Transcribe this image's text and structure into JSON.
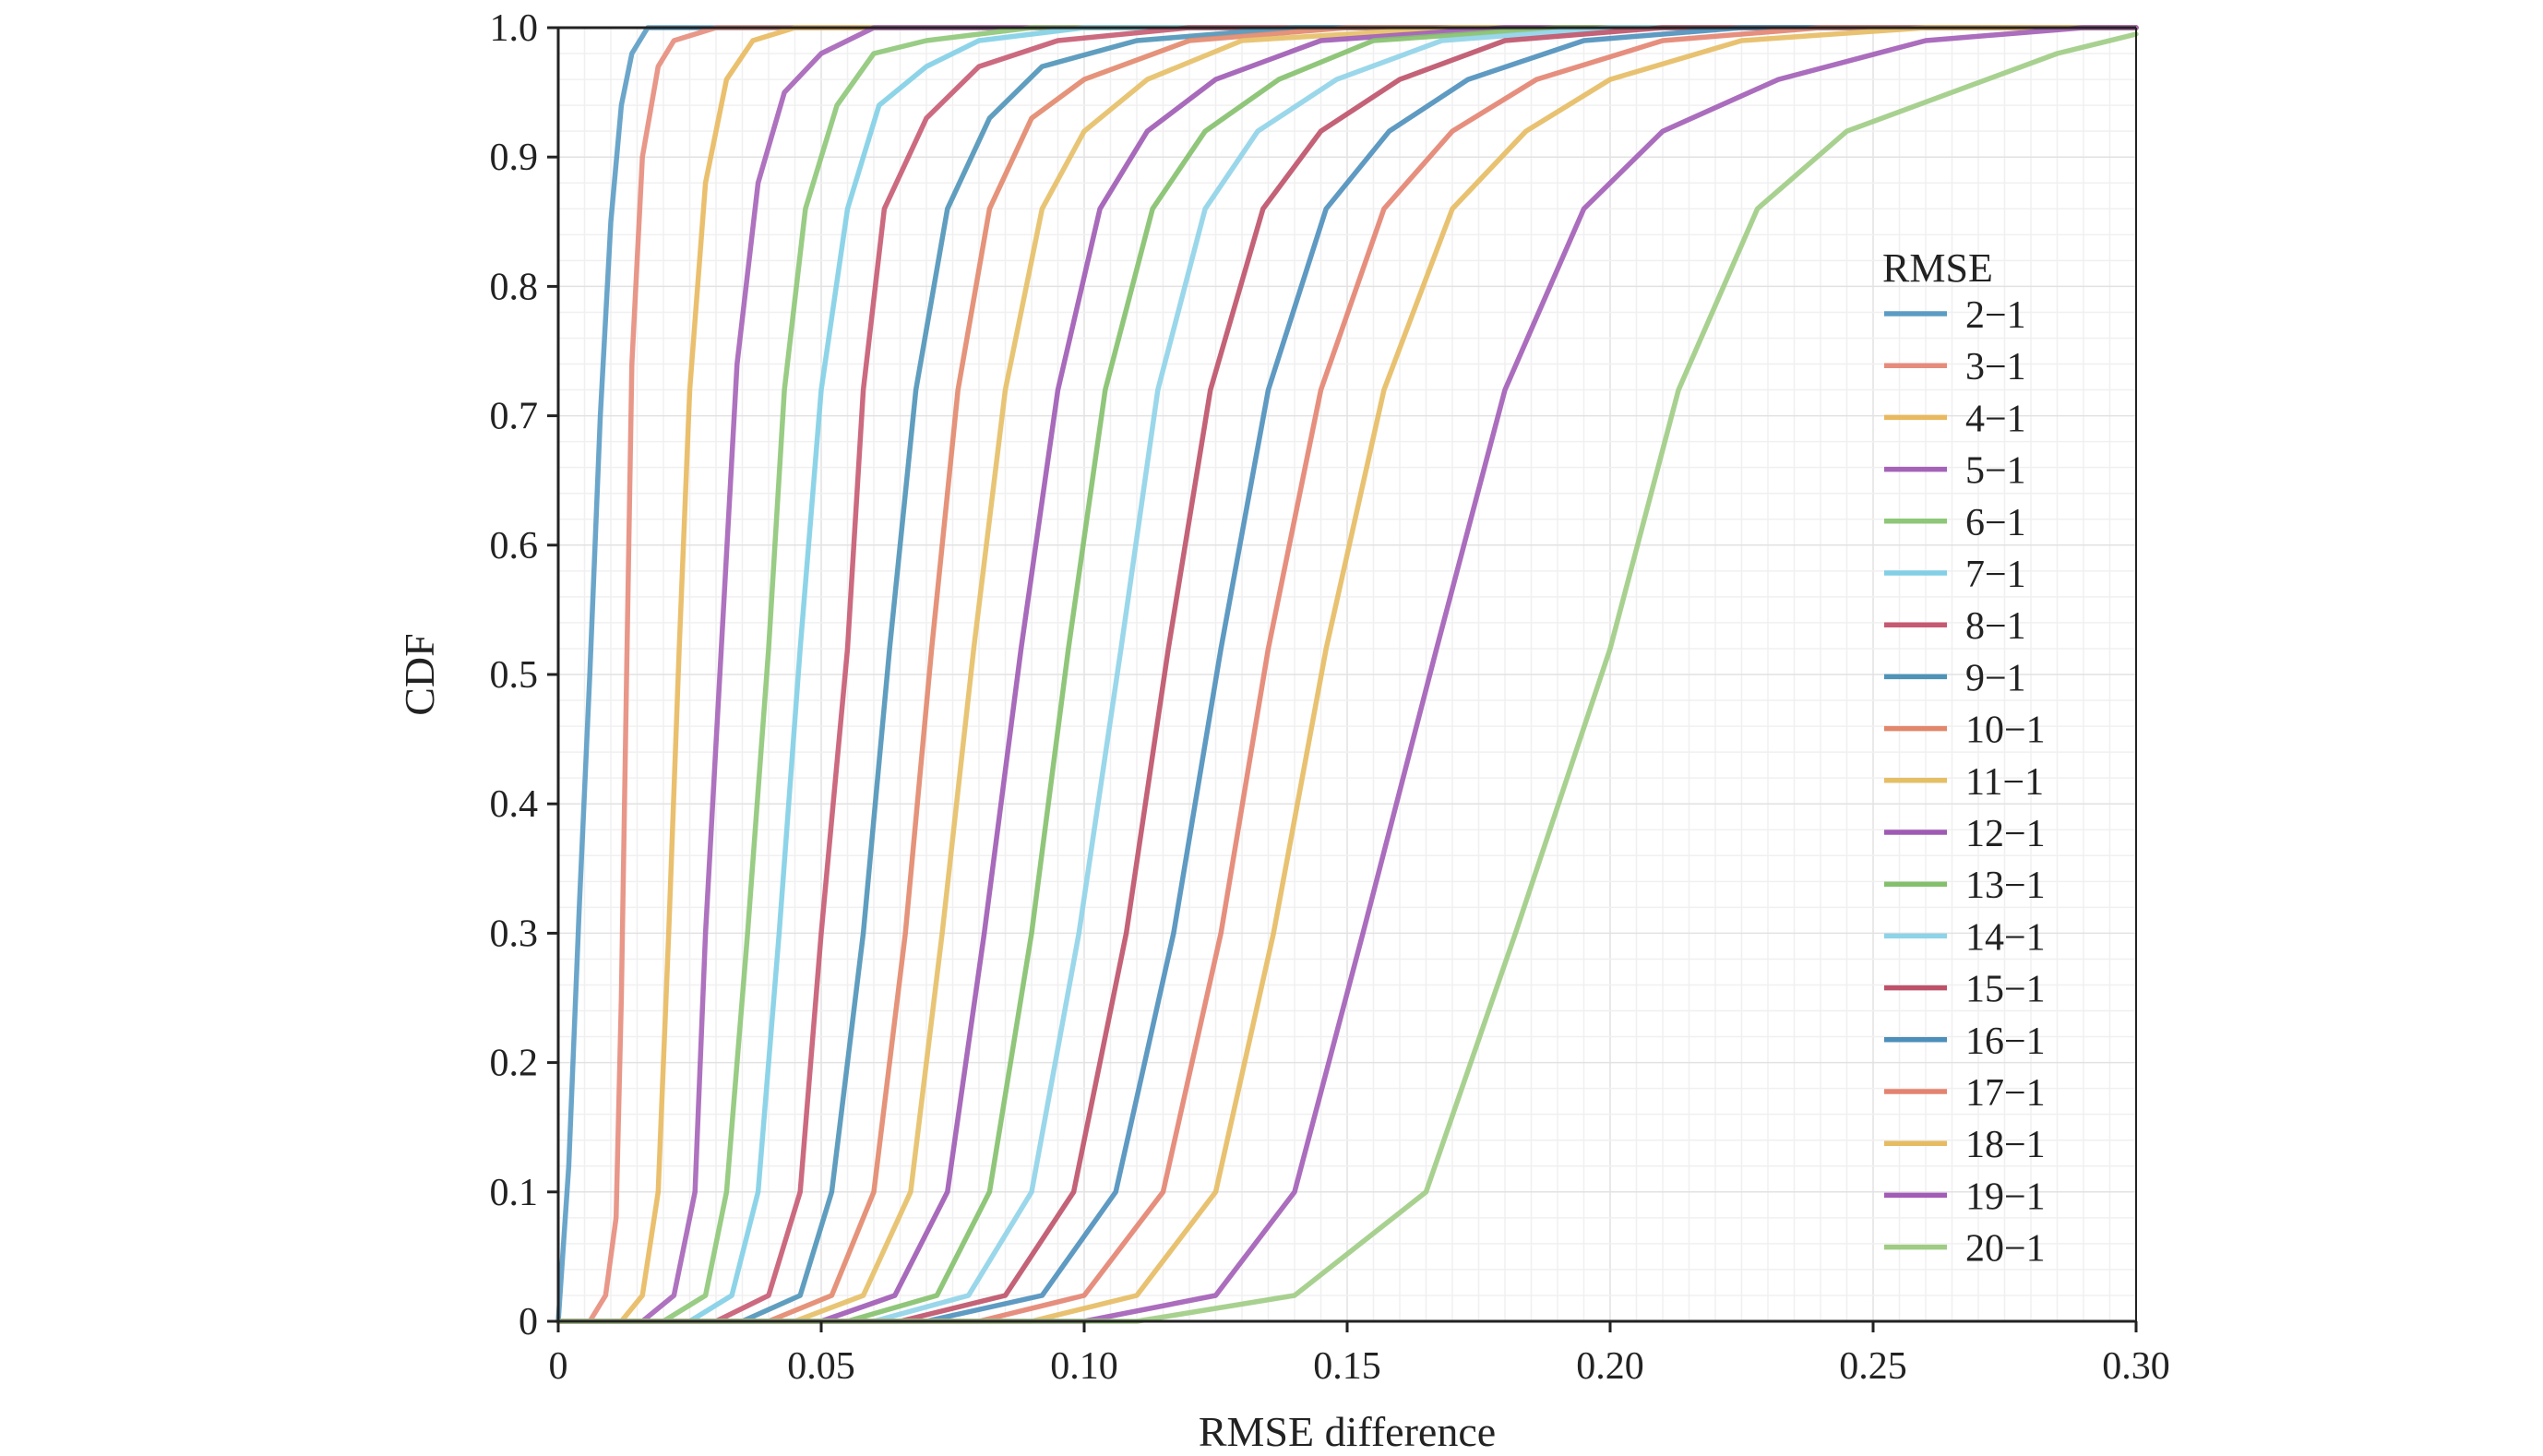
{
  "chart_data": {
    "type": "line",
    "title": "",
    "xlabel": "RMSE difference",
    "ylabel": "CDF",
    "xlim": [
      0,
      0.3
    ],
    "ylim": [
      0,
      1.0
    ],
    "grid": true,
    "legend_placement": "right",
    "legend_title": "RMSE",
    "xticks": [
      {
        "value": 0,
        "label": "0"
      },
      {
        "value": 0.05,
        "label": "0.05"
      },
      {
        "value": 0.1,
        "label": "0.10"
      },
      {
        "value": 0.15,
        "label": "0.15"
      },
      {
        "value": 0.2,
        "label": "0.20"
      },
      {
        "value": 0.25,
        "label": "0.25"
      },
      {
        "value": 0.3,
        "label": "0.30"
      }
    ],
    "yticks": [
      {
        "value": 0,
        "label": "0"
      },
      {
        "value": 0.1,
        "label": "0.1"
      },
      {
        "value": 0.2,
        "label": "0.2"
      },
      {
        "value": 0.3,
        "label": "0.3"
      },
      {
        "value": 0.4,
        "label": "0.4"
      },
      {
        "value": 0.5,
        "label": "0.5"
      },
      {
        "value": 0.6,
        "label": "0.6"
      },
      {
        "value": 0.7,
        "label": "0.7"
      },
      {
        "value": 0.8,
        "label": "0.8"
      },
      {
        "value": 0.9,
        "label": "0.9"
      },
      {
        "value": 1.0,
        "label": "1.0"
      }
    ],
    "series": [
      {
        "name": "2−1",
        "color": "#5b9cc4",
        "points": [
          [
            0.0,
            0.0
          ],
          [
            0.002,
            0.12
          ],
          [
            0.004,
            0.32
          ],
          [
            0.006,
            0.5
          ],
          [
            0.008,
            0.7
          ],
          [
            0.01,
            0.85
          ],
          [
            0.012,
            0.94
          ],
          [
            0.014,
            0.98
          ],
          [
            0.017,
            1.0
          ],
          [
            0.3,
            1.0
          ]
        ]
      },
      {
        "name": "3−1",
        "color": "#e58c7c",
        "points": [
          [
            0.0,
            0.0
          ],
          [
            0.006,
            0.0
          ],
          [
            0.009,
            0.02
          ],
          [
            0.011,
            0.08
          ],
          [
            0.012,
            0.25
          ],
          [
            0.013,
            0.5
          ],
          [
            0.014,
            0.74
          ],
          [
            0.016,
            0.9
          ],
          [
            0.019,
            0.97
          ],
          [
            0.022,
            0.99
          ],
          [
            0.03,
            1.0
          ],
          [
            0.3,
            1.0
          ]
        ]
      },
      {
        "name": "4−1",
        "color": "#e8b95e",
        "points": [
          [
            0.0,
            0.0
          ],
          [
            0.012,
            0.0
          ],
          [
            0.016,
            0.02
          ],
          [
            0.019,
            0.1
          ],
          [
            0.021,
            0.3
          ],
          [
            0.023,
            0.52
          ],
          [
            0.025,
            0.72
          ],
          [
            0.028,
            0.88
          ],
          [
            0.032,
            0.96
          ],
          [
            0.037,
            0.99
          ],
          [
            0.045,
            1.0
          ],
          [
            0.3,
            1.0
          ]
        ]
      },
      {
        "name": "5−1",
        "color": "#a563b8",
        "points": [
          [
            0.0,
            0.0
          ],
          [
            0.016,
            0.0
          ],
          [
            0.022,
            0.02
          ],
          [
            0.026,
            0.1
          ],
          [
            0.028,
            0.3
          ],
          [
            0.031,
            0.52
          ],
          [
            0.034,
            0.74
          ],
          [
            0.038,
            0.88
          ],
          [
            0.043,
            0.95
          ],
          [
            0.05,
            0.98
          ],
          [
            0.06,
            1.0
          ],
          [
            0.3,
            1.0
          ]
        ]
      },
      {
        "name": "6−1",
        "color": "#8ec777",
        "points": [
          [
            0.0,
            0.0
          ],
          [
            0.02,
            0.0
          ],
          [
            0.028,
            0.02
          ],
          [
            0.032,
            0.1
          ],
          [
            0.036,
            0.3
          ],
          [
            0.04,
            0.52
          ],
          [
            0.043,
            0.72
          ],
          [
            0.047,
            0.86
          ],
          [
            0.053,
            0.94
          ],
          [
            0.06,
            0.98
          ],
          [
            0.07,
            0.99
          ],
          [
            0.09,
            1.0
          ],
          [
            0.3,
            1.0
          ]
        ]
      },
      {
        "name": "7−1",
        "color": "#82cfe6",
        "points": [
          [
            0.0,
            0.0
          ],
          [
            0.025,
            0.0
          ],
          [
            0.033,
            0.02
          ],
          [
            0.038,
            0.1
          ],
          [
            0.042,
            0.3
          ],
          [
            0.046,
            0.52
          ],
          [
            0.05,
            0.72
          ],
          [
            0.055,
            0.86
          ],
          [
            0.061,
            0.94
          ],
          [
            0.07,
            0.97
          ],
          [
            0.08,
            0.99
          ],
          [
            0.1,
            1.0
          ],
          [
            0.3,
            1.0
          ]
        ]
      },
      {
        "name": "8−1",
        "color": "#c65a72",
        "points": [
          [
            0.0,
            0.0
          ],
          [
            0.03,
            0.0
          ],
          [
            0.04,
            0.02
          ],
          [
            0.046,
            0.1
          ],
          [
            0.05,
            0.3
          ],
          [
            0.055,
            0.52
          ],
          [
            0.058,
            0.72
          ],
          [
            0.062,
            0.86
          ],
          [
            0.07,
            0.93
          ],
          [
            0.08,
            0.97
          ],
          [
            0.095,
            0.99
          ],
          [
            0.12,
            1.0
          ],
          [
            0.3,
            1.0
          ]
        ]
      },
      {
        "name": "9−1",
        "color": "#4f93b8",
        "points": [
          [
            0.0,
            0.0
          ],
          [
            0.035,
            0.0
          ],
          [
            0.046,
            0.02
          ],
          [
            0.052,
            0.1
          ],
          [
            0.058,
            0.3
          ],
          [
            0.063,
            0.52
          ],
          [
            0.068,
            0.72
          ],
          [
            0.074,
            0.86
          ],
          [
            0.082,
            0.93
          ],
          [
            0.092,
            0.97
          ],
          [
            0.11,
            0.99
          ],
          [
            0.14,
            1.0
          ],
          [
            0.3,
            1.0
          ]
        ]
      },
      {
        "name": "10−1",
        "color": "#e2876c",
        "points": [
          [
            0.0,
            0.0
          ],
          [
            0.04,
            0.0
          ],
          [
            0.052,
            0.02
          ],
          [
            0.06,
            0.1
          ],
          [
            0.066,
            0.3
          ],
          [
            0.071,
            0.52
          ],
          [
            0.076,
            0.72
          ],
          [
            0.082,
            0.86
          ],
          [
            0.09,
            0.93
          ],
          [
            0.1,
            0.96
          ],
          [
            0.12,
            0.99
          ],
          [
            0.15,
            1.0
          ],
          [
            0.3,
            1.0
          ]
        ]
      },
      {
        "name": "11−1",
        "color": "#e5bf66",
        "points": [
          [
            0.0,
            0.0
          ],
          [
            0.045,
            0.0
          ],
          [
            0.058,
            0.02
          ],
          [
            0.067,
            0.1
          ],
          [
            0.073,
            0.3
          ],
          [
            0.079,
            0.52
          ],
          [
            0.085,
            0.72
          ],
          [
            0.092,
            0.86
          ],
          [
            0.1,
            0.92
          ],
          [
            0.112,
            0.96
          ],
          [
            0.13,
            0.99
          ],
          [
            0.17,
            1.0
          ],
          [
            0.3,
            1.0
          ]
        ]
      },
      {
        "name": "12−1",
        "color": "#9f5ab4",
        "points": [
          [
            0.0,
            0.0
          ],
          [
            0.05,
            0.0
          ],
          [
            0.064,
            0.02
          ],
          [
            0.074,
            0.1
          ],
          [
            0.081,
            0.3
          ],
          [
            0.088,
            0.52
          ],
          [
            0.095,
            0.72
          ],
          [
            0.103,
            0.86
          ],
          [
            0.112,
            0.92
          ],
          [
            0.125,
            0.96
          ],
          [
            0.145,
            0.99
          ],
          [
            0.18,
            1.0
          ],
          [
            0.3,
            1.0
          ]
        ]
      },
      {
        "name": "13−1",
        "color": "#84c06c",
        "points": [
          [
            0.0,
            0.0
          ],
          [
            0.055,
            0.0
          ],
          [
            0.072,
            0.02
          ],
          [
            0.082,
            0.1
          ],
          [
            0.09,
            0.3
          ],
          [
            0.097,
            0.52
          ],
          [
            0.104,
            0.72
          ],
          [
            0.113,
            0.86
          ],
          [
            0.123,
            0.92
          ],
          [
            0.137,
            0.96
          ],
          [
            0.155,
            0.99
          ],
          [
            0.19,
            1.0
          ],
          [
            0.3,
            1.0
          ]
        ]
      },
      {
        "name": "14−1",
        "color": "#8fd3e8",
        "points": [
          [
            0.0,
            0.0
          ],
          [
            0.06,
            0.0
          ],
          [
            0.078,
            0.02
          ],
          [
            0.09,
            0.1
          ],
          [
            0.099,
            0.3
          ],
          [
            0.107,
            0.52
          ],
          [
            0.114,
            0.72
          ],
          [
            0.123,
            0.86
          ],
          [
            0.133,
            0.92
          ],
          [
            0.148,
            0.96
          ],
          [
            0.168,
            0.99
          ],
          [
            0.2,
            1.0
          ],
          [
            0.3,
            1.0
          ]
        ]
      },
      {
        "name": "15−1",
        "color": "#be5168",
        "points": [
          [
            0.0,
            0.0
          ],
          [
            0.065,
            0.0
          ],
          [
            0.085,
            0.02
          ],
          [
            0.098,
            0.1
          ],
          [
            0.108,
            0.3
          ],
          [
            0.116,
            0.52
          ],
          [
            0.124,
            0.72
          ],
          [
            0.134,
            0.86
          ],
          [
            0.145,
            0.92
          ],
          [
            0.16,
            0.96
          ],
          [
            0.18,
            0.99
          ],
          [
            0.21,
            1.0
          ],
          [
            0.3,
            1.0
          ]
        ]
      },
      {
        "name": "16−1",
        "color": "#4c8fbb",
        "points": [
          [
            0.0,
            0.0
          ],
          [
            0.07,
            0.0
          ],
          [
            0.092,
            0.02
          ],
          [
            0.106,
            0.1
          ],
          [
            0.117,
            0.3
          ],
          [
            0.126,
            0.52
          ],
          [
            0.135,
            0.72
          ],
          [
            0.146,
            0.86
          ],
          [
            0.158,
            0.92
          ],
          [
            0.173,
            0.96
          ],
          [
            0.195,
            0.99
          ],
          [
            0.225,
            1.0
          ],
          [
            0.3,
            1.0
          ]
        ]
      },
      {
        "name": "17−1",
        "color": "#e38370",
        "points": [
          [
            0.0,
            0.0
          ],
          [
            0.08,
            0.0
          ],
          [
            0.1,
            0.02
          ],
          [
            0.115,
            0.1
          ],
          [
            0.126,
            0.3
          ],
          [
            0.135,
            0.52
          ],
          [
            0.145,
            0.72
          ],
          [
            0.157,
            0.86
          ],
          [
            0.17,
            0.92
          ],
          [
            0.186,
            0.96
          ],
          [
            0.21,
            0.99
          ],
          [
            0.24,
            1.0
          ],
          [
            0.3,
            1.0
          ]
        ]
      },
      {
        "name": "18−1",
        "color": "#e6bb62",
        "points": [
          [
            0.0,
            0.0
          ],
          [
            0.09,
            0.0
          ],
          [
            0.11,
            0.02
          ],
          [
            0.125,
            0.1
          ],
          [
            0.136,
            0.3
          ],
          [
            0.146,
            0.52
          ],
          [
            0.157,
            0.72
          ],
          [
            0.17,
            0.86
          ],
          [
            0.184,
            0.92
          ],
          [
            0.2,
            0.96
          ],
          [
            0.225,
            0.99
          ],
          [
            0.26,
            1.0
          ],
          [
            0.3,
            1.0
          ]
        ]
      },
      {
        "name": "19−1",
        "color": "#a25db6",
        "points": [
          [
            0.0,
            0.0
          ],
          [
            0.1,
            0.0
          ],
          [
            0.125,
            0.02
          ],
          [
            0.14,
            0.1
          ],
          [
            0.153,
            0.3
          ],
          [
            0.167,
            0.52
          ],
          [
            0.18,
            0.72
          ],
          [
            0.195,
            0.86
          ],
          [
            0.21,
            0.92
          ],
          [
            0.232,
            0.96
          ],
          [
            0.26,
            0.99
          ],
          [
            0.29,
            1.0
          ],
          [
            0.3,
            1.0
          ]
        ]
      },
      {
        "name": "20−1",
        "color": "#9fcc84",
        "points": [
          [
            0.0,
            0.0
          ],
          [
            0.11,
            0.0
          ],
          [
            0.14,
            0.02
          ],
          [
            0.165,
            0.1
          ],
          [
            0.182,
            0.3
          ],
          [
            0.2,
            0.52
          ],
          [
            0.213,
            0.72
          ],
          [
            0.228,
            0.86
          ],
          [
            0.245,
            0.92
          ],
          [
            0.265,
            0.95
          ],
          [
            0.285,
            0.98
          ],
          [
            0.3,
            0.995
          ]
        ]
      }
    ]
  }
}
